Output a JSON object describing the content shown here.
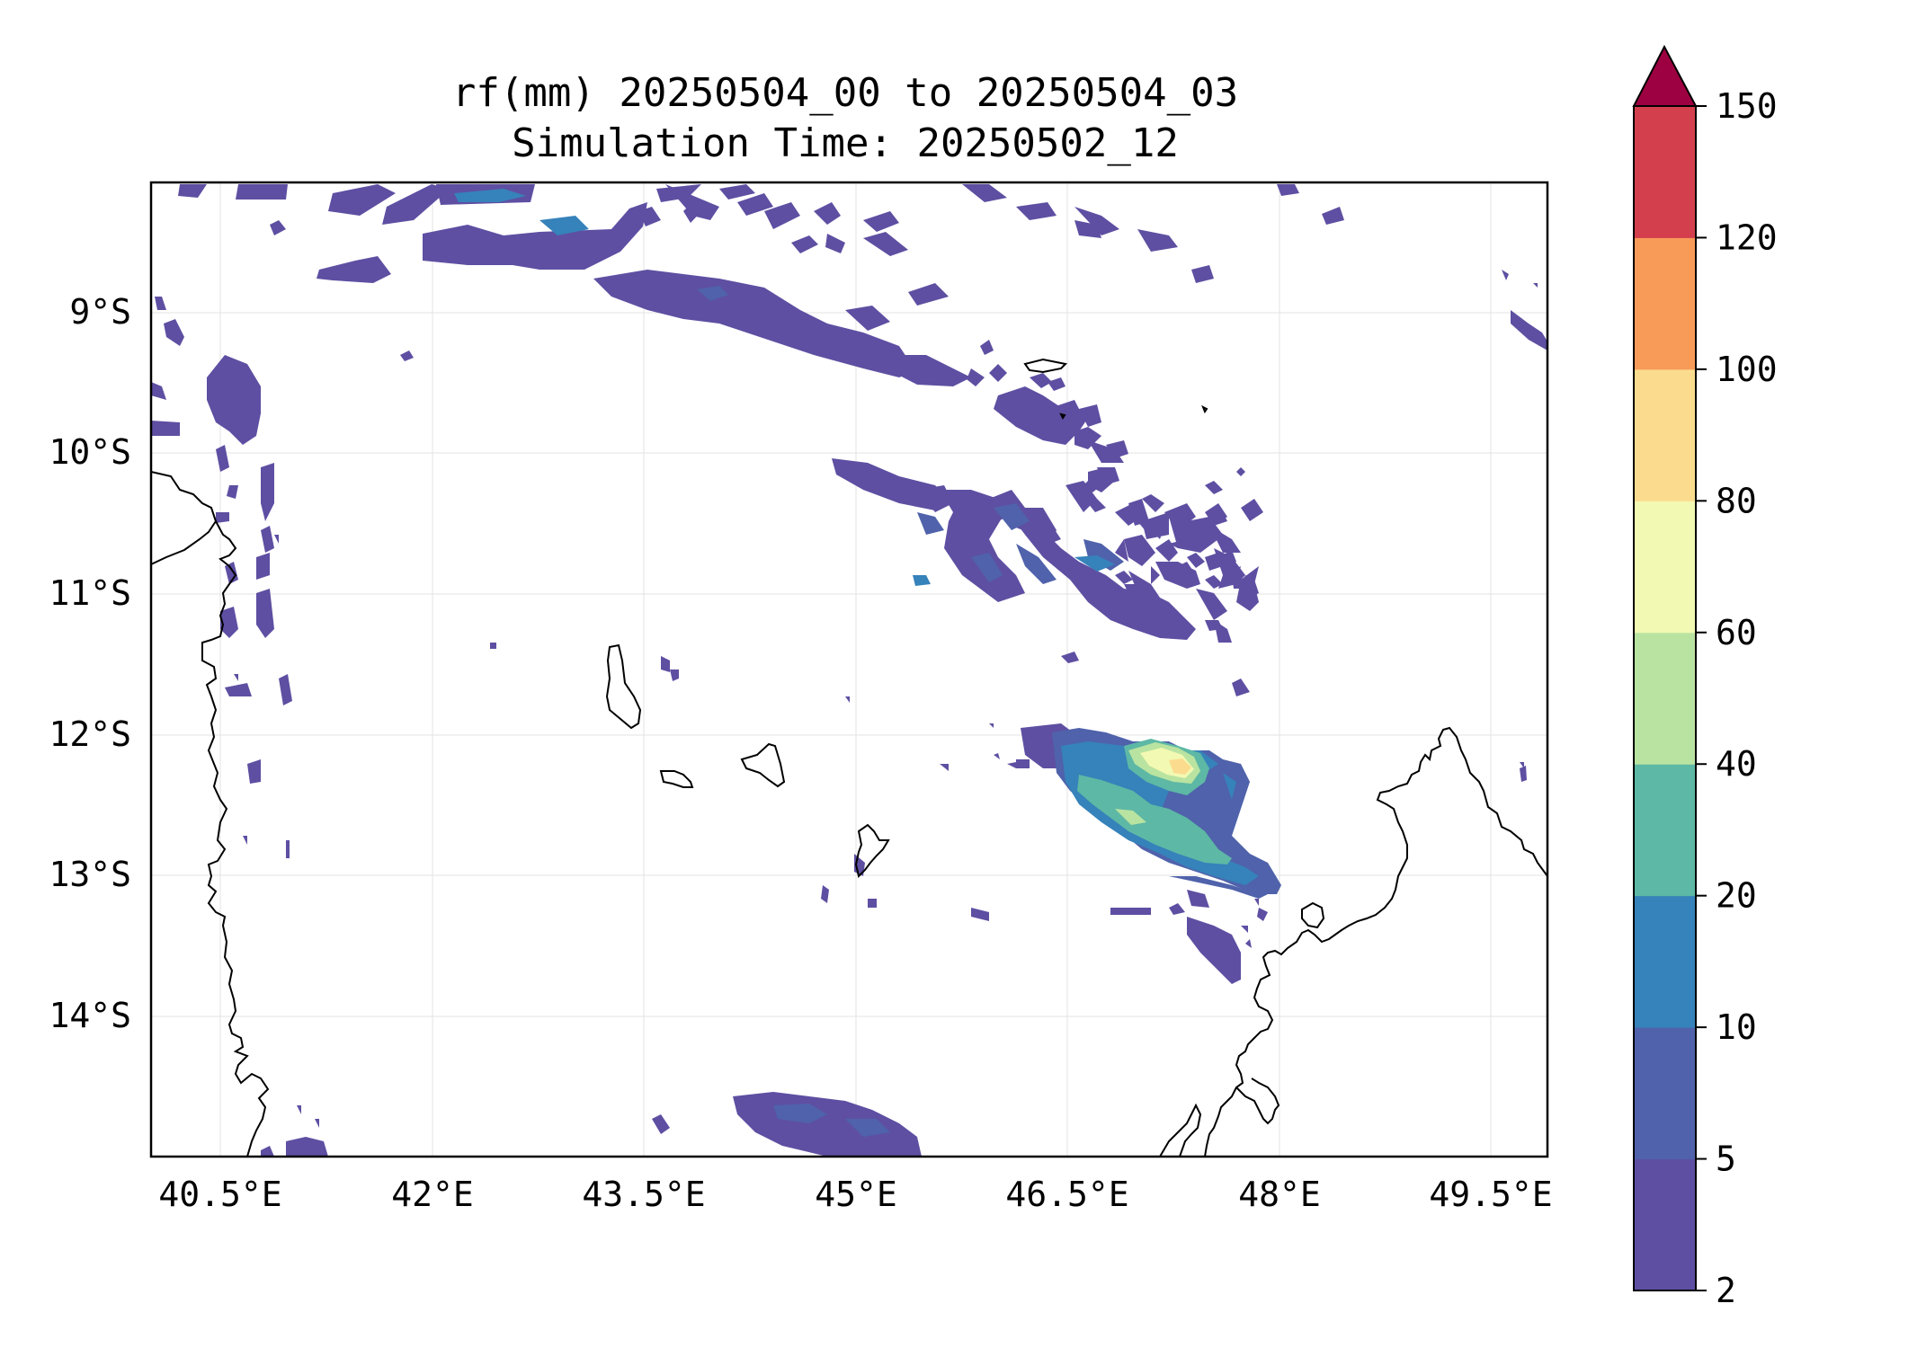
{
  "title": {
    "line1": "rf(mm) 20250504_00 to 20250504_03",
    "line2": "Simulation Time: 20250502_12"
  },
  "map": {
    "lon_ticks": [
      "40.5°E",
      "42°E",
      "43.5°E",
      "45°E",
      "46.5°E",
      "48°E",
      "49.5°E"
    ],
    "lat_ticks": [
      "9°S",
      "10°S",
      "11°S",
      "12°S",
      "13°S",
      "14°S"
    ],
    "gridlines": true
  },
  "colorbar": {
    "ticks": [
      "2",
      "5",
      "10",
      "20",
      "40",
      "60",
      "80",
      "100",
      "120",
      "150"
    ],
    "colors": [
      "#5e4fa2",
      "#4f62ab",
      "#3682ba",
      "#5db8a5",
      "#b9e3a0",
      "#f2f9b2",
      "#fbdc8f",
      "#f89b59",
      "#d43f4d",
      "#9e0142"
    ],
    "extend": "max"
  }
}
